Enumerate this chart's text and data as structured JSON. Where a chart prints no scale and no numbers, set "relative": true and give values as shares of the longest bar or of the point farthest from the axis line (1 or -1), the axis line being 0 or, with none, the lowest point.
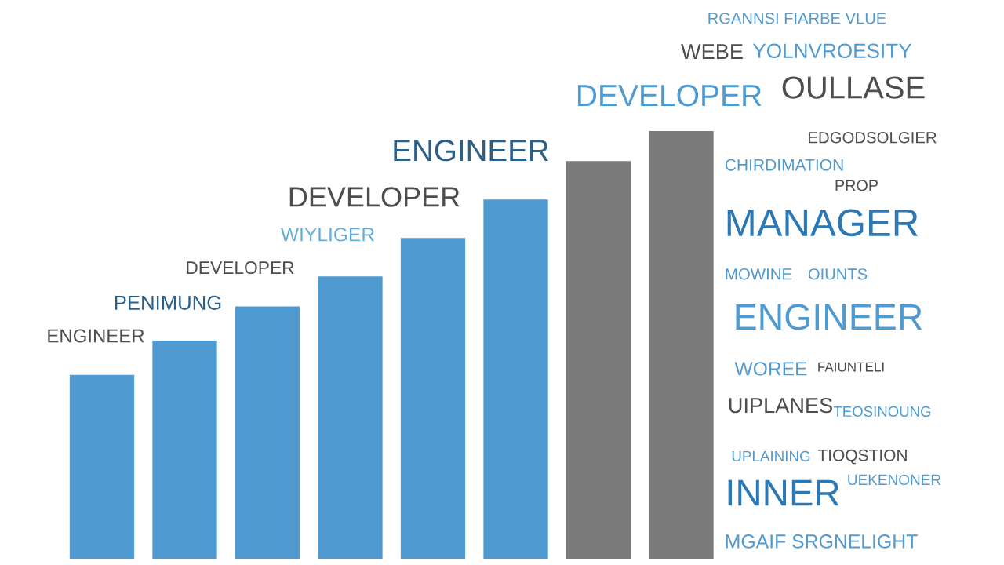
{
  "chart_data": {
    "type": "bar",
    "relative": true,
    "categories": [
      null,
      null,
      null,
      null,
      null,
      null,
      null,
      null
    ],
    "values": [
      0.43,
      0.51,
      0.59,
      0.66,
      0.75,
      0.84,
      0.93,
      1
    ],
    "colors": [
      "#4f9ad0",
      "#4f9ad0",
      "#4f9ad0",
      "#4f9ad0",
      "#4f9ad0",
      "#4f9ad0",
      "#7a7a7a",
      "#7a7a7a"
    ],
    "annotations": [
      "ENGINEER",
      "PENIMUNG",
      "DEVELOPER",
      "WIYLIGER",
      "DEVELOPER",
      "ENGINEER",
      "DEVELOPER",
      "RGANNSI FIARBE VLUE",
      "WEBE",
      "YOLNVROESITY",
      "OULLASE",
      "EDGODSOLGIER",
      "CHIRDIMATION",
      "PROP",
      "MANAGER",
      "MOWINE",
      "OIUNTS",
      "ENGINEER",
      "WOREE",
      "FAIUNTELI",
      "UIPLANES",
      "TEOSINOUNG",
      "UPLAINING",
      "TIOQSTION",
      "INNER",
      "UEKENONER",
      "MGAIF SRGNELIGHT"
    ]
  }
}
